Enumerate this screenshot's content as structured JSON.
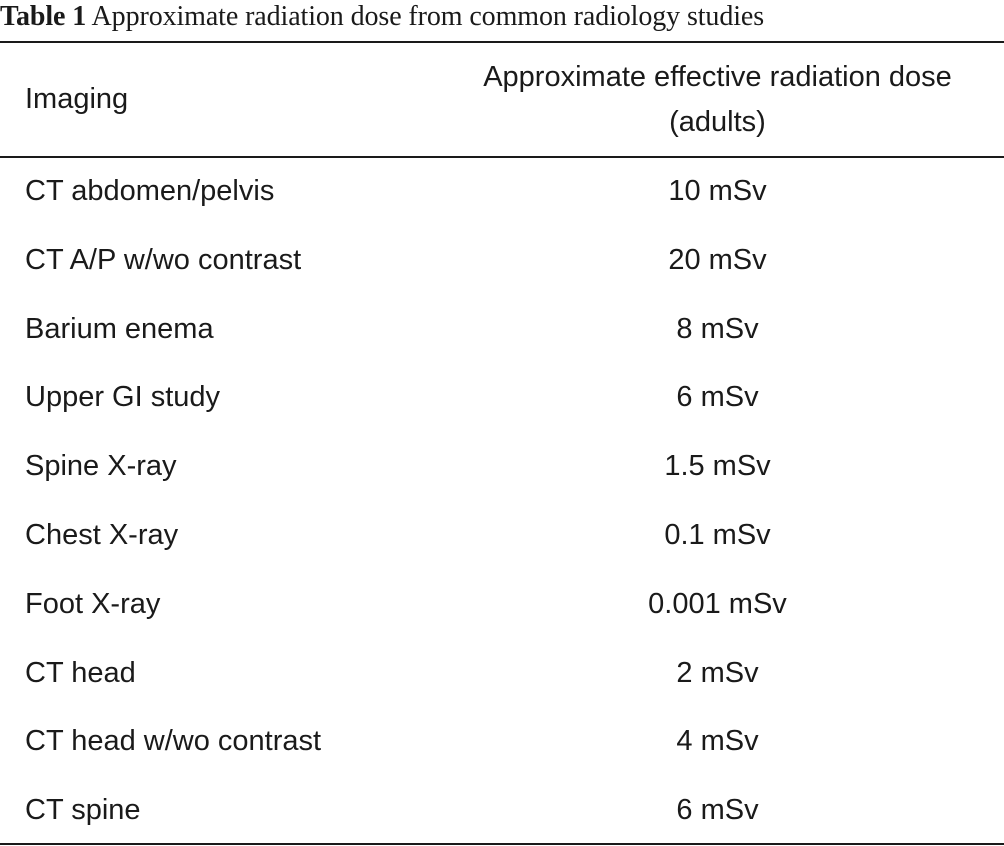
{
  "caption": {
    "label": "Table 1",
    "text": "Approximate radiation dose from common radiology studies"
  },
  "table": {
    "headers": [
      "Imaging",
      "Approximate effective radiation dose (adults)"
    ],
    "rows": [
      [
        "CT abdomen/pelvis",
        "10 mSv"
      ],
      [
        "CT A/P w/wo contrast",
        "20 mSv"
      ],
      [
        "Barium enema",
        "8 mSv"
      ],
      [
        "Upper GI study",
        "6 mSv"
      ],
      [
        "Spine X-ray",
        "1.5 mSv"
      ],
      [
        "Chest X-ray",
        "0.1 mSv"
      ],
      [
        "Foot X-ray",
        "0.001 mSv"
      ],
      [
        "CT head",
        "2 mSv"
      ],
      [
        "CT head w/wo contrast",
        "4 mSv"
      ],
      [
        "CT spine",
        "6 mSv"
      ]
    ]
  }
}
